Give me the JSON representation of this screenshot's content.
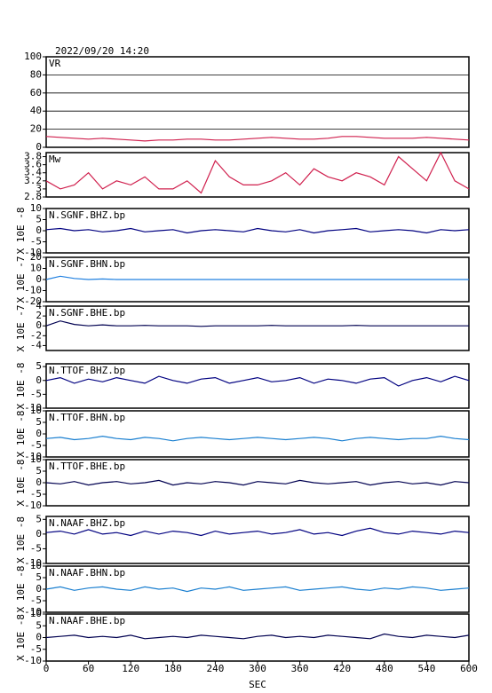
{
  "chart_data": {
    "type": "line",
    "title": "2022/09/20 14:20",
    "xlabel": "SEC",
    "xlim": [
      0,
      600
    ],
    "xticks": [
      0,
      60,
      120,
      180,
      240,
      300,
      360,
      420,
      480,
      540,
      600
    ],
    "x": [
      0,
      20,
      40,
      60,
      80,
      100,
      120,
      140,
      160,
      180,
      200,
      220,
      240,
      260,
      280,
      300,
      320,
      340,
      360,
      380,
      400,
      420,
      440,
      460,
      480,
      500,
      520,
      540,
      560,
      580,
      600
    ],
    "panels": [
      {
        "name": "VR",
        "color": "#d0204e",
        "ylim": [
          0,
          100
        ],
        "yticks": [
          0,
          20,
          40,
          60,
          80,
          100
        ],
        "grid": true,
        "values": [
          12,
          11,
          10,
          9,
          10,
          9,
          8,
          7,
          8,
          8,
          9,
          9,
          8,
          8,
          9,
          10,
          11,
          10,
          9,
          9,
          10,
          12,
          12,
          11,
          10,
          10,
          10,
          11,
          10,
          9,
          8
        ]
      },
      {
        "name": "Mw",
        "color": "#d0204e",
        "ylim": [
          2.8,
          3.9
        ],
        "yticks": [
          2.8,
          3,
          3.2,
          3.4,
          3.6,
          3.8
        ],
        "grid": false,
        "values": [
          3.2,
          3.0,
          3.1,
          3.4,
          3.0,
          3.2,
          3.1,
          3.3,
          3.0,
          3.0,
          3.2,
          2.9,
          3.7,
          3.3,
          3.1,
          3.1,
          3.2,
          3.4,
          3.1,
          3.5,
          3.3,
          3.2,
          3.4,
          3.3,
          3.1,
          3.8,
          3.5,
          3.2,
          3.9,
          3.2,
          3.0
        ]
      },
      {
        "name": "N.SGNF.BHZ.bp",
        "ylabel": "X 10E -8",
        "color": "#000080",
        "ylim": [
          -10,
          10
        ],
        "yticks": [
          -10,
          -5,
          0,
          5,
          10
        ],
        "grid": false,
        "values": [
          0.5,
          1,
          0,
          0.5,
          -0.5,
          0,
          1,
          -0.5,
          0,
          0.5,
          -1,
          0,
          0.5,
          0,
          -0.5,
          1,
          0,
          -0.5,
          0.5,
          -1,
          0,
          0.5,
          1,
          -0.5,
          0,
          0.5,
          0,
          -1,
          0.5,
          0,
          0.5
        ]
      },
      {
        "name": "N.SGNF.BHN.bp",
        "ylabel": "X 10E -7",
        "color": "#2080e0",
        "ylim": [
          -20,
          20
        ],
        "yticks": [
          -20,
          -10,
          0,
          10,
          20
        ],
        "grid": false,
        "values": [
          0,
          3,
          1,
          0,
          0.5,
          0,
          0,
          0,
          0,
          0,
          0,
          0,
          0,
          0,
          0,
          0,
          0,
          0,
          0,
          0,
          0,
          0,
          0,
          0,
          0,
          0,
          0,
          0,
          0,
          0,
          0
        ]
      },
      {
        "name": "N.SGNF.BHE.bp",
        "ylabel": "X 10E -7",
        "color": "#000050",
        "ylim": [
          -5,
          4
        ],
        "yticks": [
          -4,
          -2,
          0,
          2,
          4
        ],
        "grid": false,
        "values": [
          0,
          1,
          0.3,
          0,
          0.2,
          0,
          0,
          0.1,
          0,
          0,
          0,
          -0.1,
          0,
          0,
          0,
          0,
          0.1,
          0,
          0,
          0,
          0,
          0,
          0.1,
          0,
          0,
          0,
          0,
          0,
          0,
          0,
          0
        ]
      },
      {
        "name": "N.TTOF.BHZ.bp",
        "ylabel": "X 10E -8",
        "color": "#000080",
        "ylim": [
          -10,
          6
        ],
        "yticks": [
          -10,
          -5,
          0,
          5
        ],
        "grid": false,
        "values": [
          0,
          1,
          -1,
          0.5,
          -0.5,
          1,
          0,
          -1,
          1.5,
          0,
          -1,
          0.5,
          1,
          -1,
          0,
          1,
          -0.5,
          0,
          1,
          -1,
          0.5,
          0,
          -1,
          0.5,
          1,
          -2,
          0,
          1,
          -0.5,
          1.5,
          0
        ]
      },
      {
        "name": "N.TTOF.BHN.bp",
        "ylabel": "X 10E -8",
        "color": "#1a7fd0",
        "ylim": [
          -10,
          10
        ],
        "yticks": [
          -10,
          -5,
          0,
          5,
          10
        ],
        "grid": false,
        "values": [
          -2,
          -1.5,
          -2.5,
          -2,
          -1,
          -2,
          -2.5,
          -1.5,
          -2,
          -3,
          -2,
          -1.5,
          -2,
          -2.5,
          -2,
          -1.5,
          -2,
          -2.5,
          -2,
          -1.5,
          -2,
          -3,
          -2,
          -1.5,
          -2,
          -2.5,
          -2,
          -2,
          -1,
          -2,
          -2.5
        ]
      },
      {
        "name": "N.TTOF.BHE.bp",
        "ylabel": "X 10E -8",
        "color": "#000050",
        "ylim": [
          -10,
          10
        ],
        "yticks": [
          -10,
          -5,
          0,
          5,
          10
        ],
        "grid": false,
        "values": [
          0,
          -0.5,
          0.5,
          -1,
          0,
          0.5,
          -0.5,
          0,
          1,
          -1,
          0,
          -0.5,
          0.5,
          0,
          -1,
          0.5,
          0,
          -0.5,
          1,
          0,
          -0.5,
          0,
          0.5,
          -1,
          0,
          0.5,
          -0.5,
          0,
          -1,
          0.5,
          0
        ]
      },
      {
        "name": "N.NAAF.BHZ.bp",
        "ylabel": "X 10E -8",
        "color": "#000080",
        "ylim": [
          -10,
          6
        ],
        "yticks": [
          -10,
          -5,
          0,
          5
        ],
        "grid": false,
        "values": [
          0.5,
          1,
          0,
          1.5,
          0,
          0.5,
          -0.5,
          1,
          0,
          1,
          0.5,
          -0.5,
          1,
          0,
          0.5,
          1,
          0,
          0.5,
          1.5,
          0,
          0.5,
          -0.5,
          1,
          2,
          0.5,
          0,
          1,
          0.5,
          0,
          1,
          0.5
        ]
      },
      {
        "name": "N.NAAF.BHN.bp",
        "ylabel": "X 10E -8",
        "color": "#1a7fd0",
        "ylim": [
          -10,
          10
        ],
        "yticks": [
          -10,
          -5,
          0,
          5,
          10
        ],
        "grid": false,
        "values": [
          0,
          1,
          -0.5,
          0.5,
          1,
          0,
          -0.5,
          1,
          0,
          0.5,
          -1,
          0.5,
          0,
          1,
          -0.5,
          0,
          0.5,
          1,
          -0.5,
          0,
          0.5,
          1,
          0,
          -0.5,
          0.5,
          0,
          1,
          0.5,
          -0.5,
          0,
          0.5
        ]
      },
      {
        "name": "N.NAAF.BHE.bp",
        "ylabel": "X 10E -8",
        "color": "#000050",
        "ylim": [
          -10,
          10
        ],
        "yticks": [
          -10,
          -5,
          0,
          5,
          10
        ],
        "grid": false,
        "values": [
          0,
          0.5,
          1,
          0,
          0.5,
          0,
          1,
          -0.5,
          0,
          0.5,
          0,
          1,
          0.5,
          0,
          -0.5,
          0.5,
          1,
          0,
          0.5,
          0,
          1,
          0.5,
          0,
          -0.5,
          1.5,
          0.5,
          0,
          1,
          0.5,
          0,
          1
        ]
      }
    ]
  }
}
